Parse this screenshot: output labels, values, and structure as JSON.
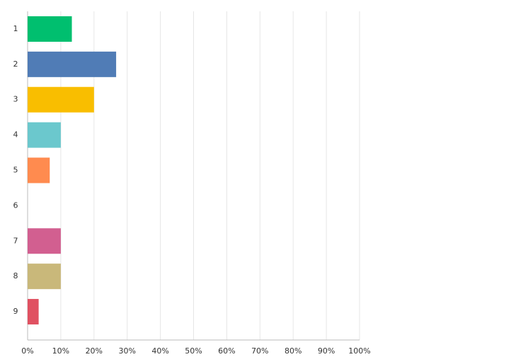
{
  "chart_data": {
    "type": "bar",
    "orientation": "horizontal",
    "categories": [
      "1",
      "2",
      "3",
      "4",
      "5",
      "6",
      "7",
      "8",
      "9"
    ],
    "values": [
      13.33,
      26.67,
      20,
      10,
      6.67,
      0,
      10,
      10,
      3.33
    ],
    "colors": [
      "#00bf6f",
      "#507cb6",
      "#f9be00",
      "#6bc8cd",
      "#ff8b4f",
      "#7f6fb3",
      "#d25f90",
      "#c9b87a",
      "#e05161"
    ],
    "xlim": [
      0,
      100
    ],
    "xticks": [
      {
        "value": 0,
        "label": "0%"
      },
      {
        "value": 10,
        "label": "10%"
      },
      {
        "value": 20,
        "label": "20%"
      },
      {
        "value": 30,
        "label": "30%"
      },
      {
        "value": 40,
        "label": "40%"
      },
      {
        "value": 50,
        "label": "50%"
      },
      {
        "value": 60,
        "label": "60%"
      },
      {
        "value": 70,
        "label": "70%"
      },
      {
        "value": 80,
        "label": "80%"
      },
      {
        "value": 90,
        "label": "90%"
      },
      {
        "value": 100,
        "label": "100%"
      }
    ],
    "grid": true
  }
}
